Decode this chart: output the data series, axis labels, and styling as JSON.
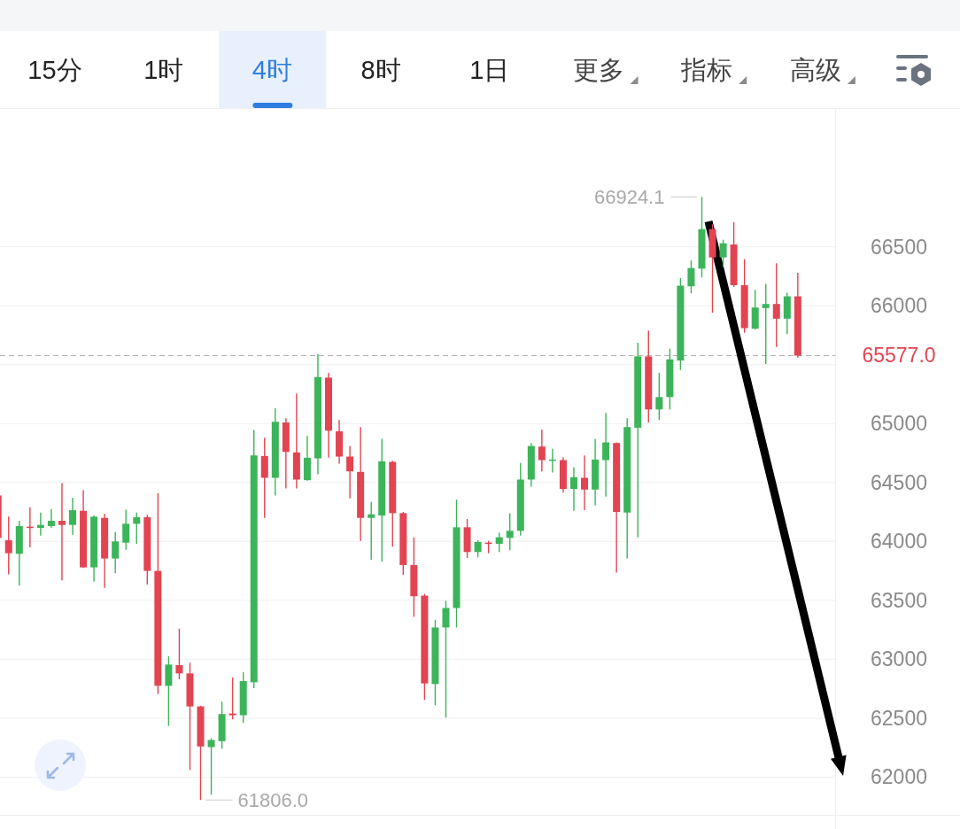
{
  "chart_data": {
    "type": "candlestick",
    "categories": [
      null,
      null,
      null,
      null,
      null,
      null,
      null,
      null,
      null,
      null,
      null,
      null,
      null,
      null,
      null,
      null,
      null,
      null,
      null,
      null,
      null,
      null,
      null,
      null,
      null,
      null,
      null,
      null,
      null,
      null,
      null,
      null,
      null,
      null,
      null,
      null,
      null,
      null,
      null,
      null,
      null,
      null,
      null,
      null,
      null,
      null,
      null,
      null,
      null,
      null,
      null,
      null,
      null,
      null,
      null,
      null,
      null,
      null,
      null,
      null,
      null,
      null,
      null,
      null,
      null,
      null,
      null,
      null,
      null,
      null,
      null,
      null,
      null,
      null,
      null,
      null,
      null,
      null,
      null
    ],
    "ohlc": [
      [
        64390,
        64400,
        64020,
        64030
      ],
      [
        64010,
        64210,
        63720,
        63900
      ],
      [
        63895,
        64175,
        63625,
        64130
      ],
      [
        64125,
        64290,
        63950,
        64115
      ],
      [
        64115,
        64245,
        64050,
        64140
      ],
      [
        64130,
        64275,
        64115,
        64175
      ],
      [
        64175,
        64495,
        63670,
        64140
      ],
      [
        64140,
        64370,
        64055,
        64265
      ],
      [
        64260,
        64435,
        63775,
        63780
      ],
      [
        63780,
        64220,
        63660,
        64210
      ],
      [
        64200,
        64235,
        63605,
        63855
      ],
      [
        63855,
        64080,
        63730,
        64000
      ],
      [
        63990,
        64270,
        63930,
        64150
      ],
      [
        64150,
        64245,
        63980,
        64205
      ],
      [
        64205,
        64225,
        63635,
        63750
      ],
      [
        63750,
        64410,
        62705,
        62775
      ],
      [
        62775,
        63025,
        62435,
        62955
      ],
      [
        62950,
        63260,
        62830,
        62880
      ],
      [
        62880,
        62970,
        62060,
        62600
      ],
      [
        62600,
        62605,
        61806,
        62260
      ],
      [
        62255,
        62330,
        61850,
        62315
      ],
      [
        62305,
        62640,
        62240,
        62535
      ],
      [
        62540,
        62845,
        62490,
        62525
      ],
      [
        62525,
        62890,
        62460,
        62815
      ],
      [
        62805,
        64945,
        62755,
        64730
      ],
      [
        64725,
        64880,
        64200,
        64540
      ],
      [
        64540,
        65130,
        64390,
        65015
      ],
      [
        65010,
        65045,
        64450,
        64760
      ],
      [
        64755,
        65255,
        64450,
        64525
      ],
      [
        64520,
        64895,
        64515,
        64710
      ],
      [
        64705,
        65590,
        64570,
        65395
      ],
      [
        65390,
        65430,
        64710,
        64940
      ],
      [
        64935,
        65030,
        64660,
        64720
      ],
      [
        64720,
        64810,
        64365,
        64595
      ],
      [
        64590,
        64970,
        64005,
        64200
      ],
      [
        64200,
        64335,
        63845,
        64230
      ],
      [
        64220,
        64870,
        63830,
        64680
      ],
      [
        64675,
        64685,
        63955,
        64240
      ],
      [
        64240,
        64250,
        63715,
        63800
      ],
      [
        63800,
        64035,
        63360,
        63535
      ],
      [
        63540,
        63555,
        62655,
        62795
      ],
      [
        62790,
        63335,
        62610,
        63270
      ],
      [
        63270,
        63495,
        62505,
        63435
      ],
      [
        63435,
        64355,
        63270,
        64120
      ],
      [
        64120,
        64190,
        63860,
        63910
      ],
      [
        63910,
        64010,
        63865,
        63995
      ],
      [
        63990,
        64005,
        63900,
        63985
      ],
      [
        63980,
        64075,
        63910,
        64035
      ],
      [
        64030,
        64240,
        63925,
        64090
      ],
      [
        64090,
        64665,
        64050,
        64525
      ],
      [
        64525,
        64835,
        64465,
        64810
      ],
      [
        64805,
        64950,
        64595,
        64690
      ],
      [
        64685,
        64785,
        64585,
        64695
      ],
      [
        64690,
        64715,
        64415,
        64445
      ],
      [
        64445,
        64630,
        64260,
        64545
      ],
      [
        64540,
        64730,
        64265,
        64440
      ],
      [
        64440,
        64870,
        64305,
        64695
      ],
      [
        64690,
        65090,
        64380,
        64840
      ],
      [
        64835,
        64840,
        63735,
        64250
      ],
      [
        64245,
        65045,
        63855,
        64970
      ],
      [
        64965,
        65685,
        64035,
        65570
      ],
      [
        65570,
        65790,
        65010,
        65120
      ],
      [
        65120,
        65430,
        65030,
        65225
      ],
      [
        65225,
        65635,
        65120,
        65545
      ],
      [
        65535,
        66235,
        65455,
        66170
      ],
      [
        66165,
        66385,
        66105,
        66320
      ],
      [
        66315,
        66924.1,
        66240,
        66650
      ],
      [
        66650,
        66690,
        65940,
        66410
      ],
      [
        66410,
        66560,
        66330,
        66530
      ],
      [
        66520,
        66710,
        66160,
        66175
      ],
      [
        66175,
        66395,
        65770,
        65810
      ],
      [
        65805,
        66135,
        65800,
        65985
      ],
      [
        65980,
        66185,
        65505,
        66015
      ],
      [
        66015,
        66360,
        65650,
        65890
      ],
      [
        65890,
        66110,
        65760,
        66080
      ],
      [
        66080,
        66280,
        65560,
        65577
      ],
      null,
      null,
      null
    ],
    "colors": [
      "#e24452",
      "#e24452",
      "#3cb45a",
      "#e24452",
      "#3cb45a",
      "#3cb45a",
      "#e24452",
      "#3cb45a",
      "#e24452",
      "#3cb45a",
      "#e24452",
      "#3cb45a",
      "#3cb45a",
      "#3cb45a",
      "#e24452",
      "#e24452",
      "#3cb45a",
      "#e24452",
      "#e24452",
      "#e24452",
      "#3cb45a",
      "#3cb45a",
      "#e24452",
      "#3cb45a",
      "#3cb45a",
      "#e24452",
      "#3cb45a",
      "#e24452",
      "#e24452",
      "#3cb45a",
      "#3cb45a",
      "#e24452",
      "#e24452",
      "#e24452",
      "#e24452",
      "#3cb45a",
      "#3cb45a",
      "#e24452",
      "#e24452",
      "#e24452",
      "#e24452",
      "#3cb45a",
      "#3cb45a",
      "#3cb45a",
      "#e24452",
      "#3cb45a",
      "#e24452",
      "#3cb45a",
      "#3cb45a",
      "#3cb45a",
      "#3cb45a",
      "#e24452",
      "#3cb45a",
      "#e24452",
      "#3cb45a",
      "#e24452",
      "#3cb45a",
      "#3cb45a",
      "#e24452",
      "#3cb45a",
      "#3cb45a",
      "#e24452",
      "#3cb45a",
      "#3cb45a",
      "#3cb45a",
      "#3cb45a",
      "#3cb45a",
      "#e24452",
      "#3cb45a",
      "#e24452",
      "#e24452",
      "#3cb45a",
      "#3cb45a",
      "#e24452",
      "#3cb45a",
      "#e24452",
      null,
      null,
      null
    ],
    "ylim": [
      61680,
      67670
    ],
    "yticks": [
      62000,
      62500,
      63000,
      63500,
      64000,
      64500,
      65000,
      {
        "value": 65500,
        "label": null
      },
      66000,
      66500
    ],
    "grid": "y",
    "ref_lines": [
      {
        "axis": "y",
        "value": 65577,
        "label": "65577.0",
        "color": "#b4b4b4",
        "line_style": "dashed"
      }
    ],
    "annotations": [
      "15分",
      "1时",
      "4时",
      "8时",
      "1日",
      "更多",
      "指标",
      "高级",
      "66924.1",
      "61806.0"
    ]
  }
}
